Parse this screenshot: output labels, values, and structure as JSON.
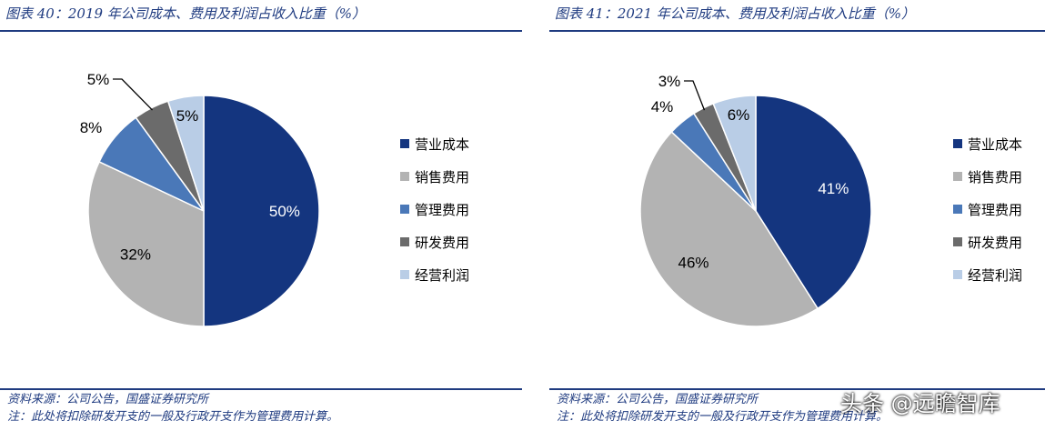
{
  "charts": [
    {
      "title": "图表 40：2019 年公司成本、费用及利润占收入比重（%）",
      "source": "资料来源：公司公告，国盛证券研究所",
      "note": "注：此处将扣除研发开支的一般及行政开支作为管理费用计算。"
    },
    {
      "title": "图表 41：2021 年公司成本、费用及利润占收入比重（%）",
      "source": "资料来源：公司公告，国盛证券研究所",
      "note": "注：此处将扣除研发开支的一般及行政开支作为管理费用计算。"
    }
  ],
  "watermark": "头条 @远瞻智库",
  "colors": {
    "营业成本": "#14357f",
    "销售费用": "#b3b3b3",
    "管理费用": "#4a78b8",
    "研发费用": "#6b6b6b",
    "经营利润": "#b9cde6",
    "title": "#1f3b80"
  },
  "chart_data": [
    {
      "type": "pie",
      "title": "图表 40：2019 年公司成本、费用及利润占收入比重（%）",
      "legend_position": "right",
      "categories": [
        "营业成本",
        "销售费用",
        "管理费用",
        "研发费用",
        "经营利润"
      ],
      "values": [
        50,
        32,
        8,
        5,
        5
      ],
      "labels": [
        "50%",
        "32%",
        "8%",
        "5%",
        "5%"
      ]
    },
    {
      "type": "pie",
      "title": "图表 41：2021 年公司成本、费用及利润占收入比重（%）",
      "legend_position": "right",
      "categories": [
        "营业成本",
        "销售费用",
        "管理费用",
        "研发费用",
        "经营利润"
      ],
      "values": [
        41,
        46,
        4,
        3,
        6
      ],
      "labels": [
        "41%",
        "46%",
        "4%",
        "3%",
        "6%"
      ]
    }
  ]
}
